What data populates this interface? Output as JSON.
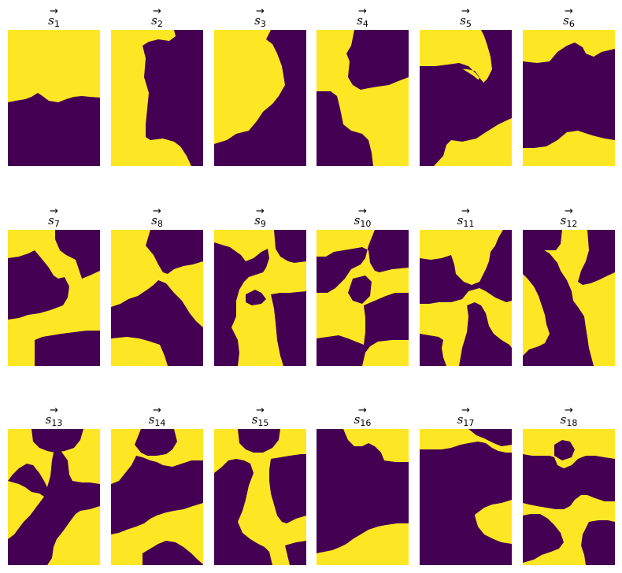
{
  "colors": {
    "state_a": "#440154",
    "state_b": "#fde725"
  },
  "title_symbol": "s",
  "panels": [
    {
      "sub": "1"
    },
    {
      "sub": "2"
    },
    {
      "sub": "3"
    },
    {
      "sub": "4"
    },
    {
      "sub": "5"
    },
    {
      "sub": "6"
    },
    {
      "sub": "7"
    },
    {
      "sub": "8"
    },
    {
      "sub": "9"
    },
    {
      "sub": "10"
    },
    {
      "sub": "11"
    },
    {
      "sub": "12"
    },
    {
      "sub": "13"
    },
    {
      "sub": "14"
    },
    {
      "sub": "15"
    },
    {
      "sub": "16"
    },
    {
      "sub": "17"
    },
    {
      "sub": "18"
    }
  ]
}
